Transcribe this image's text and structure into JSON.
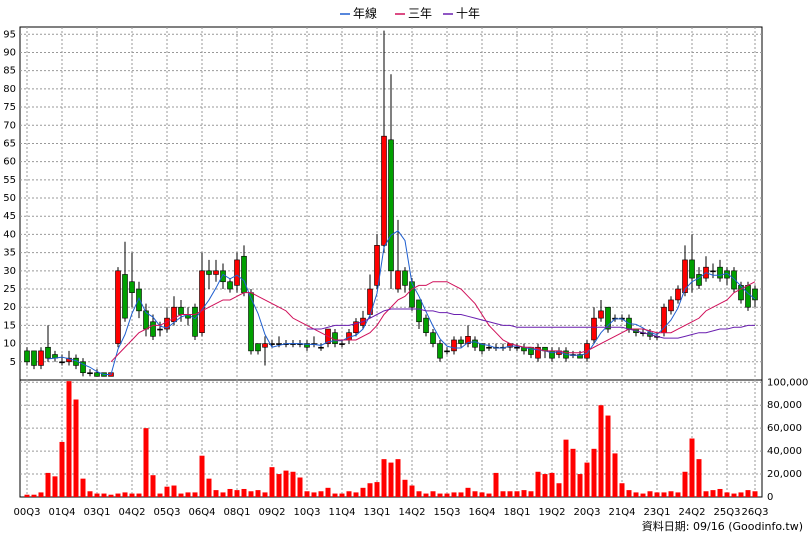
{
  "chart_data": [
    {
      "type": "candlestick",
      "categories": [
        "00Q3",
        null,
        null,
        null,
        null,
        "01Q4",
        null,
        null,
        null,
        null,
        "03Q1",
        null,
        null,
        null,
        null,
        "04Q2",
        null,
        null,
        null,
        null,
        "05Q3",
        null,
        null,
        null,
        null,
        "06Q4",
        null,
        null,
        null,
        null,
        "08Q1",
        null,
        null,
        null,
        null,
        "09Q2",
        null,
        null,
        null,
        null,
        "10Q3",
        null,
        null,
        null,
        null,
        "11Q4",
        null,
        null,
        null,
        null,
        "13Q1",
        null,
        null,
        null,
        null,
        "14Q2",
        null,
        null,
        null,
        null,
        "15Q3",
        null,
        null,
        null,
        null,
        "16Q4",
        null,
        null,
        null,
        null,
        "18Q1",
        null,
        null,
        null,
        null,
        "19Q2",
        null,
        null,
        null,
        null,
        "20Q3",
        null,
        null,
        null,
        null,
        "21Q4",
        null,
        null,
        null,
        null,
        "23Q1",
        null,
        null,
        null,
        null,
        "24Q2",
        null,
        null,
        null,
        null,
        "25Q3",
        null,
        null,
        null,
        "26Q3"
      ],
      "open": [
        8,
        8,
        4,
        9,
        7,
        5,
        5,
        6,
        5,
        2,
        2,
        2,
        1,
        10,
        29,
        27,
        25,
        19,
        16,
        14,
        14,
        16,
        20,
        18,
        20,
        13,
        30,
        29,
        30,
        27,
        26,
        34,
        24,
        10,
        9,
        10,
        10,
        10,
        10,
        10,
        10,
        10,
        9,
        10,
        13,
        10,
        11,
        13,
        15,
        18,
        26,
        37,
        66,
        25,
        30,
        27,
        22,
        17,
        13,
        10,
        8,
        8,
        11,
        10,
        11,
        10,
        9,
        9,
        9,
        9,
        9,
        9,
        9,
        6,
        9,
        8,
        7,
        8,
        7,
        7,
        6,
        11,
        17,
        20,
        17,
        17,
        17,
        14,
        13,
        13,
        12,
        13,
        19,
        22,
        24,
        33,
        29,
        28,
        30,
        31,
        30,
        30,
        26,
        26,
        25
      ],
      "high": [
        9,
        8,
        9,
        15,
        8,
        7,
        8,
        7,
        6,
        3,
        3,
        2,
        2,
        31,
        38,
        35,
        27,
        21,
        18,
        16,
        20,
        23,
        22,
        20,
        21,
        35,
        33,
        33,
        32,
        28,
        35,
        37,
        25,
        10,
        12,
        11,
        12,
        11,
        11,
        11,
        11,
        12,
        10,
        14,
        14,
        11,
        14,
        17,
        19,
        29,
        40,
        96,
        84,
        44,
        31,
        28,
        22,
        18,
        14,
        11,
        9,
        12,
        12,
        15,
        12,
        10,
        10,
        10,
        10,
        10,
        10,
        10,
        9,
        10,
        9,
        9,
        9,
        9,
        8,
        8,
        11,
        20,
        22,
        20,
        18,
        18,
        18,
        14,
        14,
        14,
        13,
        21,
        23,
        26,
        37,
        40,
        31,
        34,
        32,
        33,
        31,
        31,
        27,
        27,
        26
      ],
      "low": [
        4,
        3,
        3,
        5,
        5,
        4,
        4,
        3,
        1,
        1,
        1,
        1,
        1,
        9,
        16,
        20,
        17,
        12,
        11,
        12,
        13,
        15,
        16,
        15,
        11,
        12,
        25,
        27,
        25,
        24,
        24,
        23,
        7,
        7,
        4,
        9,
        9,
        9,
        9,
        9,
        8,
        9,
        8,
        9,
        9,
        9,
        10,
        12,
        14,
        17,
        25,
        35,
        25,
        24,
        24,
        19,
        14,
        12,
        9,
        5,
        7,
        7,
        9,
        9,
        8,
        7,
        8,
        8,
        8,
        8,
        8,
        7,
        6,
        5,
        6,
        5,
        6,
        5,
        6,
        6,
        5,
        10,
        16,
        13,
        16,
        16,
        13,
        12,
        12,
        11,
        11,
        12,
        18,
        21,
        23,
        24,
        25,
        27,
        28,
        27,
        26,
        24,
        21,
        19,
        20
      ],
      "close": [
        5,
        4,
        8,
        6,
        6,
        5,
        6,
        4,
        2,
        2,
        1,
        1,
        2,
        30,
        17,
        24,
        19,
        14,
        12,
        14,
        17,
        20,
        18,
        17,
        12,
        30,
        29,
        30,
        27,
        25,
        33,
        24,
        8,
        8,
        10,
        10,
        10,
        10,
        10,
        10,
        9,
        10,
        9,
        14,
        10,
        10,
        13,
        16,
        17,
        25,
        37,
        67,
        30,
        30,
        26,
        20,
        16,
        13,
        10,
        6,
        8,
        11,
        10,
        12,
        9,
        8,
        9,
        9,
        9,
        10,
        9,
        8,
        7,
        9,
        8,
        6,
        8,
        6,
        7,
        6,
        10,
        17,
        19,
        14,
        17,
        17,
        14,
        13,
        13,
        12,
        12,
        20,
        22,
        25,
        33,
        28,
        26,
        31,
        30,
        28,
        28,
        25,
        22,
        20,
        22
      ],
      "up_color": "#ff0000",
      "down_color": "#00a000",
      "series": [
        {
          "name": "年線",
          "color": "#1f5fd0",
          "values": [
            null,
            null,
            null,
            5.8,
            6,
            6.3,
            5.8,
            5.3,
            4.3,
            3.5,
            2.3,
            1.5,
            1.5,
            8.5,
            12.5,
            18.3,
            22.5,
            18.5,
            17.3,
            14.8,
            14.3,
            15.8,
            17.3,
            18,
            16.8,
            19.3,
            22,
            25.3,
            29,
            27.8,
            28.8,
            27.3,
            22.5,
            18.3,
            12.5,
            9,
            9.5,
            10,
            10,
            10,
            9.8,
            9.8,
            9.5,
            10.5,
            10.8,
            10.8,
            11.8,
            12.3,
            14,
            17.8,
            23.8,
            36.5,
            39.8,
            41,
            38.3,
            26.5,
            23,
            18.8,
            14.8,
            11.3,
            9.3,
            8.8,
            8.8,
            10.3,
            10.5,
            9.8,
            9.5,
            8.8,
            8.8,
            9.3,
            9.3,
            9,
            8.5,
            8.3,
            8,
            7.5,
            7.8,
            7,
            6.8,
            6.8,
            7.3,
            10,
            13,
            15,
            16.8,
            16.8,
            15.5,
            15.3,
            14.3,
            13,
            12.5,
            14.3,
            16.5,
            19.8,
            25,
            27,
            28,
            29.5,
            28.8,
            28.8,
            29.3,
            27.8,
            25.8,
            23.8,
            22.3
          ]
        },
        {
          "name": "三年",
          "color": "#d0105a",
          "values": [
            null,
            null,
            null,
            null,
            null,
            null,
            null,
            null,
            null,
            null,
            null,
            null,
            5,
            7,
            9,
            11,
            13,
            14,
            15,
            15,
            16,
            17,
            18,
            18,
            18,
            19,
            20,
            21,
            22,
            22,
            23,
            24,
            24,
            23,
            22,
            21,
            20,
            19,
            17,
            16,
            15,
            14,
            13,
            12,
            11,
            11,
            11,
            11,
            12,
            13,
            15,
            18,
            20,
            22,
            23,
            25,
            26,
            26,
            27,
            27,
            27,
            26,
            25,
            23,
            21,
            18,
            15,
            13,
            11,
            10,
            9.5,
            9,
            9,
            8.5,
            8,
            8,
            8,
            7.5,
            7.5,
            7.5,
            8,
            9,
            10,
            11,
            12,
            13,
            14,
            14,
            14,
            13.5,
            13,
            13,
            13,
            14,
            15,
            16,
            17,
            19,
            20,
            21,
            22,
            24,
            25,
            26,
            27
          ]
        },
        {
          "name": "十年",
          "color": "#6a1fb0",
          "values": [
            null,
            null,
            null,
            null,
            null,
            null,
            null,
            null,
            null,
            null,
            null,
            null,
            null,
            null,
            null,
            null,
            null,
            null,
            null,
            null,
            null,
            null,
            null,
            null,
            null,
            null,
            null,
            null,
            null,
            null,
            null,
            null,
            null,
            null,
            null,
            null,
            null,
            null,
            null,
            null,
            14,
            14,
            14,
            14.5,
            15,
            15,
            15,
            15.5,
            16,
            17,
            18,
            19,
            19.5,
            19.5,
            19.5,
            19.5,
            19.5,
            19,
            19,
            18.5,
            18.5,
            18,
            18,
            17.5,
            17,
            16.5,
            16,
            15.5,
            15,
            15,
            14.5,
            14.5,
            14.5,
            14.5,
            14.5,
            14.5,
            14.5,
            14.5,
            14.5,
            14.5,
            14.5,
            14.5,
            14.5,
            14.5,
            14.5,
            14.5,
            14,
            13.5,
            13,
            12.5,
            12,
            11.5,
            11.5,
            11.5,
            12,
            12.5,
            13,
            13,
            13.5,
            14,
            14,
            14.5,
            14.5,
            15,
            15
          ]
        }
      ],
      "ylim": [
        0,
        97
      ],
      "yticks": [
        5,
        10,
        15,
        20,
        25,
        30,
        35,
        40,
        45,
        50,
        55,
        60,
        65,
        70,
        75,
        80,
        85,
        90,
        95
      ],
      "grid": true,
      "source": "資料日期: 09/16 (Goodinfo.tw)"
    },
    {
      "type": "bar",
      "values": [
        2000,
        2000,
        4000,
        21000,
        18000,
        48000,
        101000,
        85000,
        16000,
        5000,
        3000,
        3000,
        2000,
        3000,
        4000,
        3000,
        3000,
        60000,
        19000,
        3000,
        9000,
        10000,
        3000,
        4000,
        4000,
        36000,
        16000,
        6000,
        4000,
        7000,
        6000,
        7000,
        5000,
        6000,
        4000,
        26000,
        20000,
        23000,
        22000,
        17000,
        5000,
        4000,
        5000,
        8000,
        3000,
        3000,
        5000,
        4000,
        8000,
        12000,
        13000,
        33000,
        30000,
        33000,
        15000,
        10000,
        5000,
        3000,
        5000,
        3000,
        3000,
        4000,
        4000,
        8000,
        5000,
        4000,
        3000,
        21000,
        5000,
        5000,
        5000,
        6000,
        5000,
        22000,
        20000,
        21000,
        12000,
        50000,
        42000,
        20000,
        30000,
        42000,
        80000,
        71000,
        38000,
        12000,
        6000,
        4000,
        3000,
        5000,
        4000,
        4000,
        5000,
        4000,
        22000,
        51000,
        33000,
        5000,
        6000,
        7000,
        4000,
        3000,
        4000,
        6000,
        5000
      ],
      "color": "#ff0000",
      "ylim": [
        0,
        102000
      ],
      "yticks": [
        0,
        {
          "value": 20000,
          "label": "20,000"
        },
        {
          "value": 40000,
          "label": "40,000"
        },
        {
          "value": 60000,
          "label": "60,000"
        },
        {
          "value": 80000,
          "label": "80,000"
        },
        {
          "value": 100000,
          "label": "100,000"
        }
      ],
      "grid": true
    }
  ]
}
